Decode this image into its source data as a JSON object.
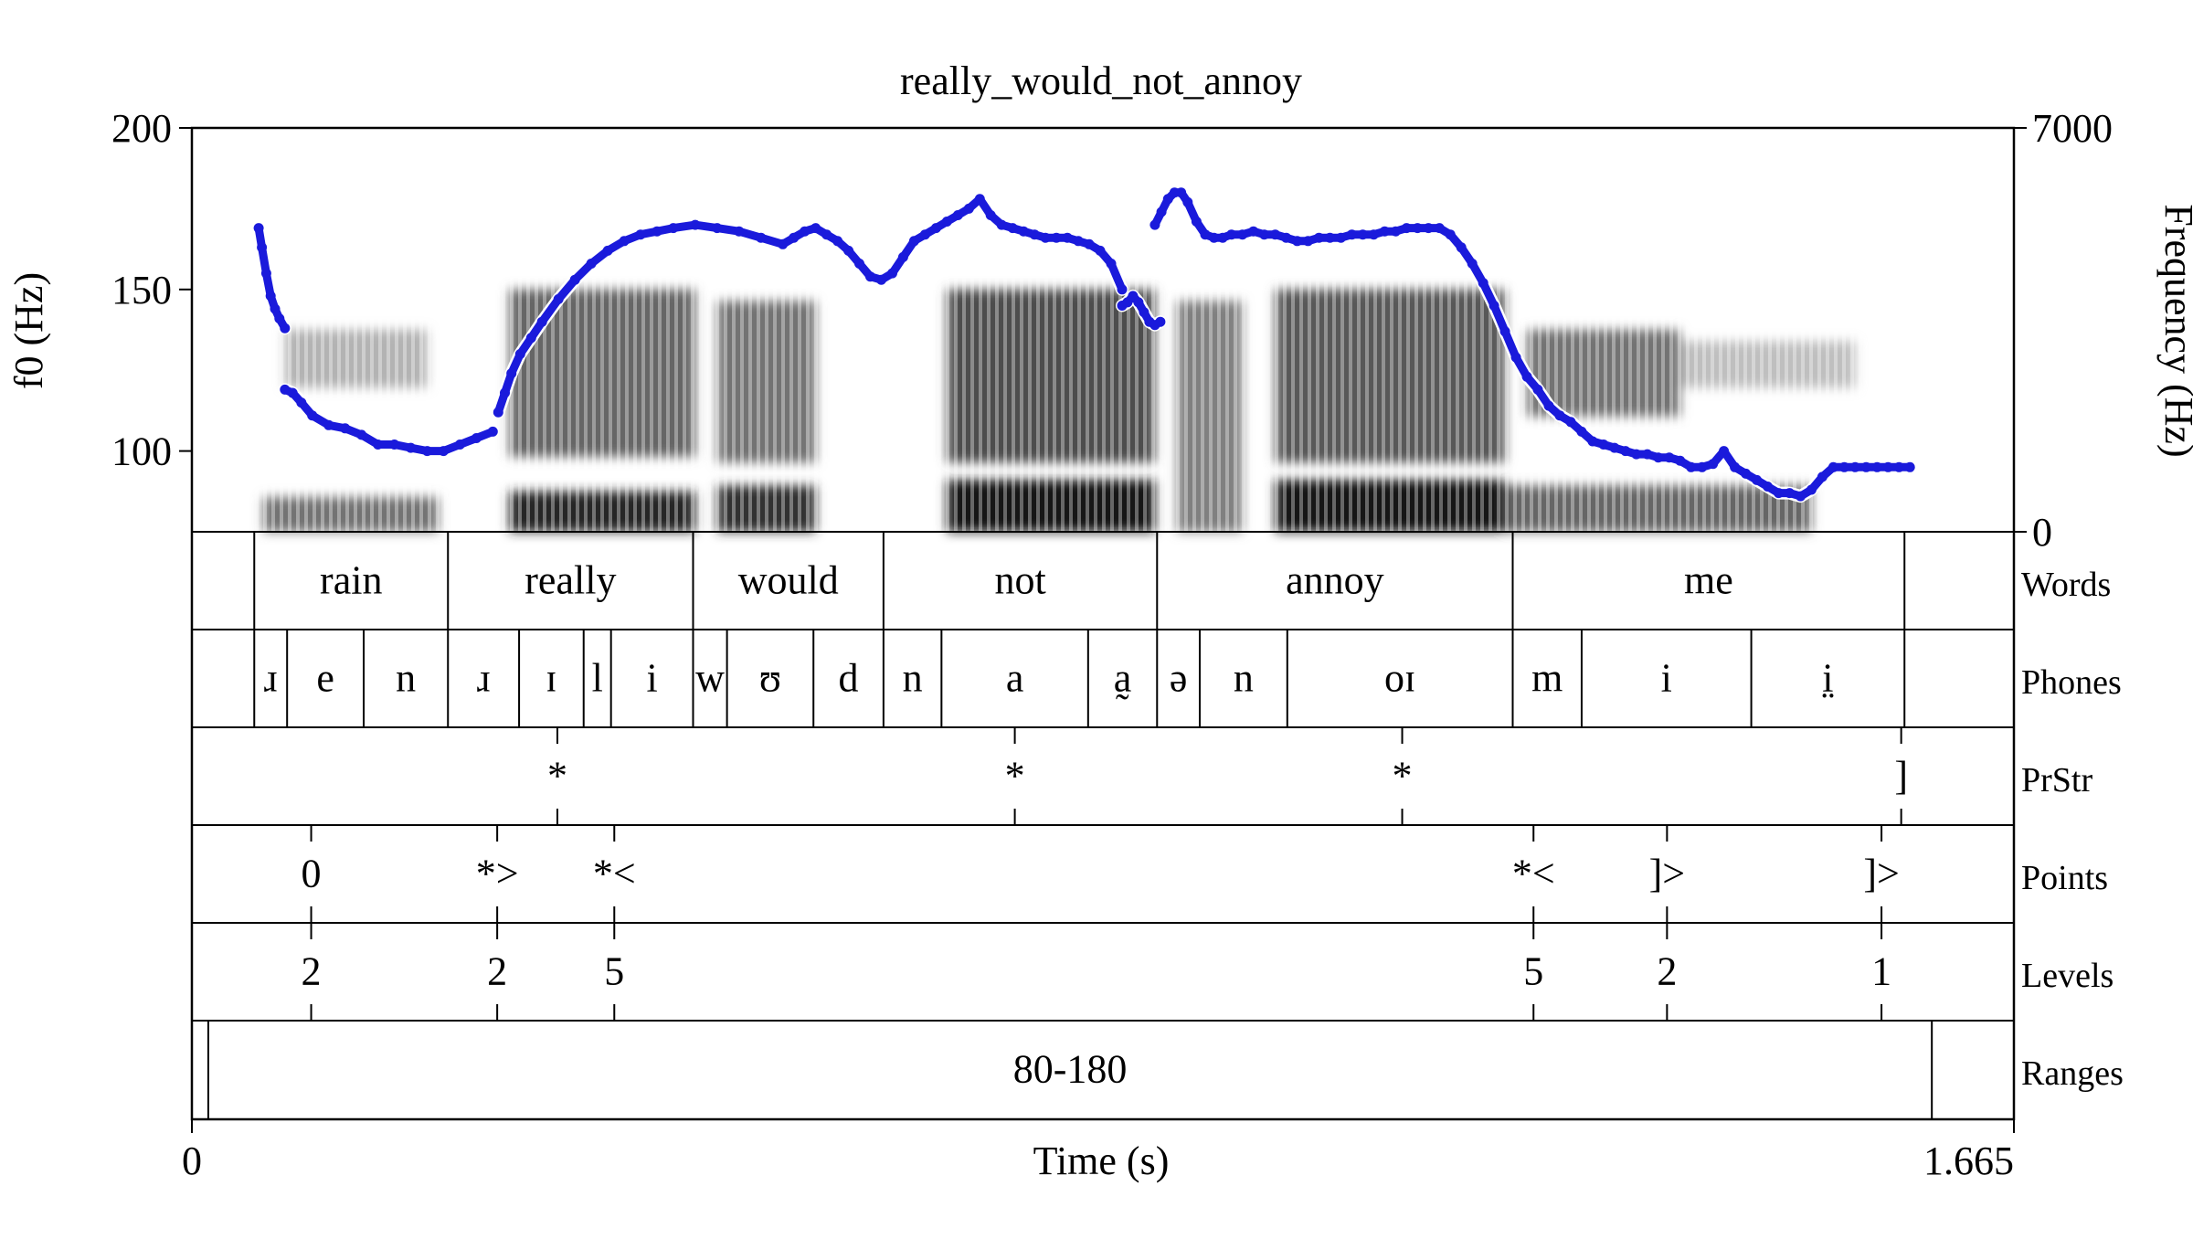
{
  "chart_data": {
    "type": "line",
    "title": "really_would_not_annoy",
    "xlabel": "Time (s)",
    "ylabel_left": "f0 (Hz)",
    "ylabel_right": "Frequency (Hz)",
    "xlim": [
      0,
      1.665
    ],
    "ylim_left": [
      75,
      200
    ],
    "yticks_left": [
      100,
      150,
      200
    ],
    "ylim_right": [
      0,
      7000
    ],
    "yticks_right": [
      0,
      7000
    ],
    "xtick_labels": {
      "start": "0",
      "end": "1.665"
    },
    "curve_color": "#1a1adb",
    "f0_segments": [
      {
        "x": [
          0.061,
          0.064,
          0.068,
          0.072,
          0.076,
          0.08,
          0.085
        ],
        "y": [
          169,
          163,
          155,
          148,
          144,
          141,
          138
        ]
      },
      {
        "x": [
          0.085,
          0.092,
          0.1,
          0.11,
          0.125,
          0.14,
          0.155,
          0.17,
          0.185,
          0.2,
          0.215,
          0.23,
          0.245,
          0.26,
          0.275
        ],
        "y": [
          119,
          118,
          115,
          111,
          108,
          107,
          105,
          102,
          102,
          101,
          100,
          100,
          102,
          104,
          106
        ]
      },
      {
        "x": [
          0.28,
          0.286,
          0.292,
          0.3,
          0.31,
          0.32,
          0.335,
          0.35,
          0.365,
          0.38,
          0.395,
          0.41,
          0.425,
          0.44,
          0.46,
          0.48,
          0.5,
          0.52,
          0.54,
          0.55,
          0.56,
          0.57,
          0.58,
          0.59,
          0.6,
          0.61,
          0.62,
          0.63,
          0.64,
          0.65,
          0.66,
          0.67,
          0.68,
          0.69,
          0.7,
          0.71,
          0.72,
          0.73,
          0.74,
          0.75,
          0.76,
          0.77,
          0.78,
          0.79,
          0.8,
          0.81,
          0.82,
          0.83,
          0.84,
          0.85
        ],
        "y": [
          112,
          118,
          124,
          130,
          135,
          140,
          147,
          153,
          158,
          162,
          165,
          167,
          168,
          169,
          170,
          169,
          168,
          166,
          164,
          166,
          168,
          169,
          167,
          165,
          162,
          158,
          154,
          153,
          155,
          160,
          165,
          167,
          169,
          171,
          173,
          175,
          178,
          173,
          170,
          169,
          168,
          167,
          166,
          166,
          166,
          165,
          164,
          162,
          158,
          150
        ]
      },
      {
        "x": [
          0.85,
          0.855,
          0.86,
          0.865,
          0.87,
          0.875,
          0.88,
          0.885
        ],
        "y": [
          145,
          146,
          148,
          146,
          143,
          140,
          139,
          140
        ]
      },
      {
        "x": [
          0.88,
          0.886,
          0.892,
          0.898,
          0.904,
          0.91,
          0.918,
          0.926,
          0.934,
          0.942,
          0.95,
          0.96,
          0.97,
          0.98,
          0.99,
          1.0,
          1.01,
          1.02,
          1.03,
          1.04,
          1.05,
          1.06,
          1.07,
          1.08,
          1.09,
          1.1,
          1.11,
          1.12,
          1.13,
          1.14,
          1.15,
          1.16,
          1.17,
          1.18,
          1.19,
          1.2,
          1.21,
          1.22,
          1.23,
          1.24,
          1.25,
          1.26,
          1.27,
          1.28,
          1.29,
          1.3,
          1.31,
          1.32,
          1.33,
          1.34,
          1.35,
          1.36,
          1.37,
          1.38,
          1.39,
          1.4,
          1.41,
          1.42,
          1.43,
          1.44,
          1.45,
          1.46,
          1.47,
          1.48,
          1.49,
          1.5,
          1.51,
          1.52,
          1.53,
          1.54,
          1.55,
          1.56,
          1.57
        ],
        "y": [
          170,
          174,
          178,
          180,
          180,
          177,
          171,
          167,
          166,
          166,
          167,
          167,
          168,
          167,
          167,
          166,
          165,
          165,
          166,
          166,
          166,
          167,
          167,
          167,
          168,
          168,
          169,
          169,
          169,
          169,
          167,
          163,
          158,
          152,
          145,
          137,
          129,
          123,
          119,
          114,
          111,
          109,
          106,
          103,
          102,
          101,
          100,
          99,
          99,
          98,
          98,
          97,
          95,
          95,
          96,
          100,
          95,
          93,
          91,
          89,
          87,
          87,
          86,
          88,
          92,
          95,
          95,
          95,
          95,
          95,
          95,
          95,
          95
        ]
      }
    ],
    "spectrogram_bands": [
      {
        "x0": 0.065,
        "x1": 0.225,
        "f0": 0,
        "f1": 600,
        "dark": 0.55
      },
      {
        "x0": 0.085,
        "x1": 0.215,
        "f0": 2500,
        "f1": 3500,
        "dark": 0.3
      },
      {
        "x0": 0.29,
        "x1": 0.46,
        "f0": 0,
        "f1": 700,
        "dark": 0.85
      },
      {
        "x0": 0.29,
        "x1": 0.46,
        "f0": 1300,
        "f1": 4200,
        "dark": 0.6
      },
      {
        "x0": 0.48,
        "x1": 0.57,
        "f0": 0,
        "f1": 800,
        "dark": 0.8
      },
      {
        "x0": 0.48,
        "x1": 0.57,
        "f0": 1200,
        "f1": 4000,
        "dark": 0.55
      },
      {
        "x0": 0.69,
        "x1": 0.88,
        "f0": 0,
        "f1": 900,
        "dark": 0.9
      },
      {
        "x0": 0.69,
        "x1": 0.88,
        "f0": 1200,
        "f1": 4200,
        "dark": 0.7
      },
      {
        "x0": 0.9,
        "x1": 0.96,
        "f0": 0,
        "f1": 4000,
        "dark": 0.5
      },
      {
        "x0": 0.99,
        "x1": 1.2,
        "f0": 0,
        "f1": 900,
        "dark": 0.9
      },
      {
        "x0": 0.99,
        "x1": 1.2,
        "f0": 1200,
        "f1": 4200,
        "dark": 0.65
      },
      {
        "x0": 1.2,
        "x1": 1.48,
        "f0": 0,
        "f1": 800,
        "dark": 0.6
      },
      {
        "x0": 1.22,
        "x1": 1.36,
        "f0": 2000,
        "f1": 3500,
        "dark": 0.55
      },
      {
        "x0": 1.36,
        "x1": 1.52,
        "f0": 2500,
        "f1": 3300,
        "dark": 0.25
      }
    ],
    "tiers": [
      {
        "name": "Words",
        "type": "interval",
        "boundaries": [
          0.057,
          0.234,
          0.458,
          0.632,
          0.882,
          1.207,
          1.565
        ],
        "labels": [
          "rain",
          "really",
          "would",
          "not",
          "annoy",
          "me"
        ]
      },
      {
        "name": "Phones",
        "type": "interval",
        "boundaries": [
          0.057,
          0.087,
          0.157,
          0.234,
          0.299,
          0.358,
          0.383,
          0.458,
          0.489,
          0.568,
          0.632,
          0.685,
          0.819,
          0.882,
          0.921,
          1.001,
          1.207,
          1.27,
          1.425,
          1.565
        ],
        "labels": [
          "ɹ",
          "e",
          "n",
          "ɹ",
          "ɪ",
          "l",
          "i",
          "w",
          "ʊ",
          "d",
          "n",
          "a",
          "a̰",
          "ə",
          "n",
          "oɪ",
          "m",
          "i",
          "i̤"
        ]
      },
      {
        "name": "PrStr",
        "type": "point",
        "points": [
          {
            "t": 0.334,
            "label": "*"
          },
          {
            "t": 0.752,
            "label": "*"
          },
          {
            "t": 1.106,
            "label": "*"
          },
          {
            "t": 1.562,
            "label": "]"
          }
        ]
      },
      {
        "name": "Points",
        "type": "point",
        "points": [
          {
            "t": 0.109,
            "label": "0"
          },
          {
            "t": 0.279,
            "label": "*>"
          },
          {
            "t": 0.386,
            "label": "*<"
          },
          {
            "t": 1.226,
            "label": "*<"
          },
          {
            "t": 1.348,
            "label": "]>"
          },
          {
            "t": 1.544,
            "label": "]>"
          }
        ]
      },
      {
        "name": "Levels",
        "type": "point",
        "points": [
          {
            "t": 0.109,
            "label": "2"
          },
          {
            "t": 0.279,
            "label": "2"
          },
          {
            "t": 0.386,
            "label": "5"
          },
          {
            "t": 1.226,
            "label": "5"
          },
          {
            "t": 1.348,
            "label": "2"
          },
          {
            "t": 1.544,
            "label": "1"
          }
        ]
      },
      {
        "name": "Ranges",
        "type": "interval",
        "boundaries": [
          0.015,
          1.59
        ],
        "labels": [
          "80-180"
        ]
      }
    ]
  }
}
